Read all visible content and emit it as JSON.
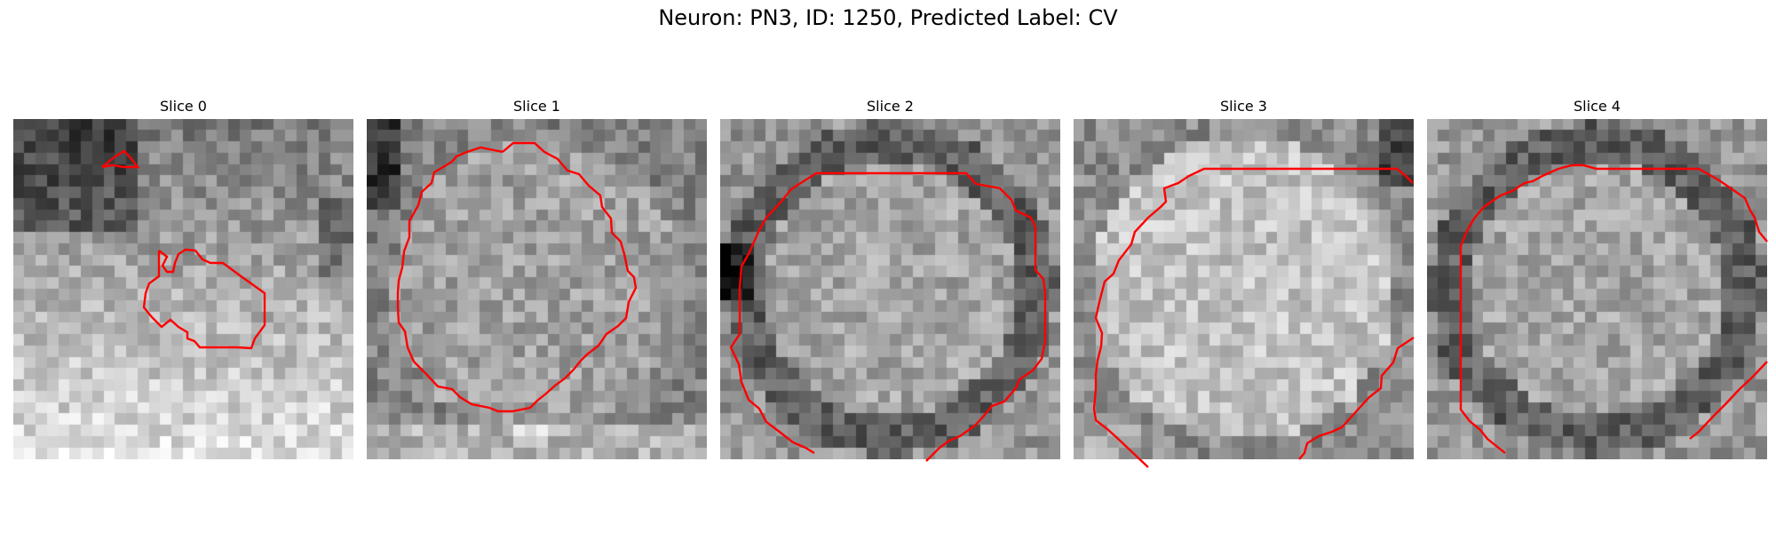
{
  "figure": {
    "title": "Neuron: PN3, ID: 1250, Predicted Label: CV",
    "contour_color": "#ff0000",
    "colormap": "gray",
    "grid_size": 30,
    "slices": [
      {
        "title": "Slice 0",
        "tone": "dark-top-bright-bottom"
      },
      {
        "title": "Slice 1",
        "tone": "mid-gray-cell"
      },
      {
        "title": "Slice 2",
        "tone": "dark-ring"
      },
      {
        "title": "Slice 3",
        "tone": "bright-cell"
      },
      {
        "title": "Slice 4",
        "tone": "dark-ring"
      }
    ]
  }
}
